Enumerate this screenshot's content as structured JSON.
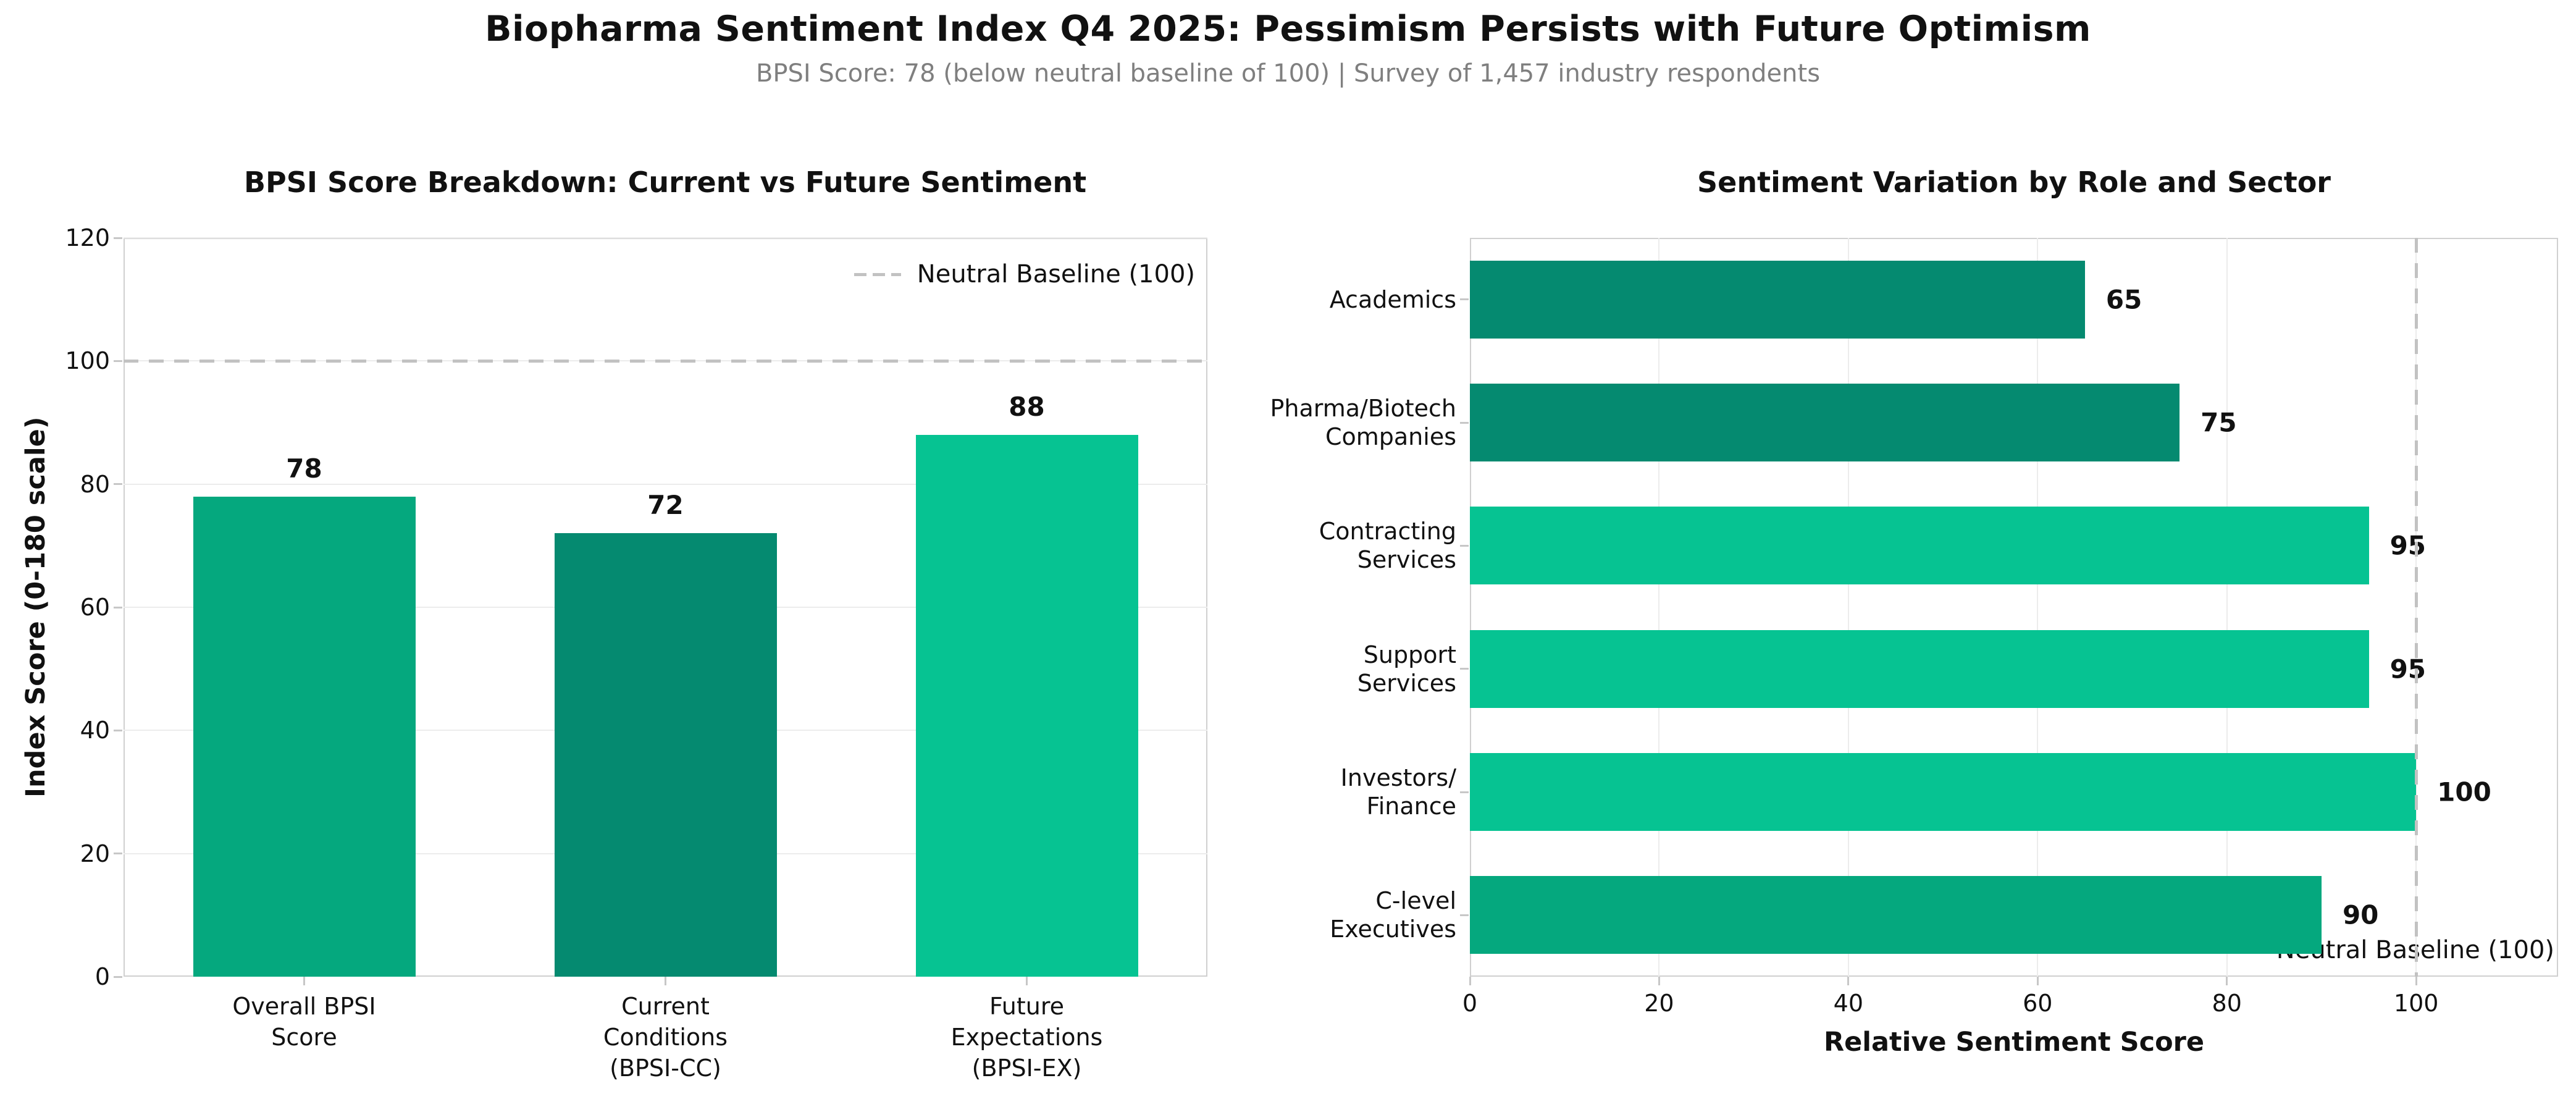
{
  "header": {
    "title": "Biopharma Sentiment Index Q4 2025: Pessimism Persists with Future Optimism",
    "subtitle": "BPSI Score: 78 (below neutral baseline of 100) | Survey of 1,457 industry respondents"
  },
  "colors": {
    "bar_dark": "#058A70",
    "bar_medium": "#05A87E",
    "bar_light": "#06C392",
    "baseline_dash": "#C2C2C2",
    "gridline": "#ECECEC",
    "spine": "#D0D0D0",
    "tick_mark": "#C7C7C7",
    "subtitle_text": "#7F7F7F",
    "text": "#111111"
  },
  "chart_data": [
    {
      "type": "bar",
      "title": "BPSI Score Breakdown: Current vs Future Sentiment",
      "ylabel": "Index Score (0-180 scale)",
      "categories": [
        "Overall BPSI\nScore",
        "Current\nConditions\n(BPSI-CC)",
        "Future\nExpectations\n(BPSI-EX)"
      ],
      "values": [
        78,
        72,
        88
      ],
      "bar_color_roles": [
        "bar_medium",
        "bar_dark",
        "bar_light"
      ],
      "ylim": [
        0,
        120
      ],
      "yticks": [
        0,
        20,
        40,
        60,
        80,
        100,
        120
      ],
      "grid": "horizontal",
      "baseline": {
        "value": 100,
        "label": "Neutral Baseline (100)"
      },
      "legend_position": "upper right"
    },
    {
      "type": "horizontal_bar",
      "title": "Sentiment Variation by Role and Sector",
      "xlabel": "Relative Sentiment Score",
      "categories": [
        "Academics",
        "Pharma/Biotech\nCompanies",
        "Contracting\nServices",
        "Support\nServices",
        "Investors/\nFinance",
        "C-level\nExecutives"
      ],
      "values": [
        65,
        75,
        95,
        95,
        100,
        90
      ],
      "bar_color_roles": [
        "bar_dark",
        "bar_dark",
        "bar_light",
        "bar_light",
        "bar_light",
        "bar_medium"
      ],
      "xlim": [
        0,
        115
      ],
      "xticks": [
        0,
        20,
        40,
        60,
        80,
        100
      ],
      "grid": "vertical",
      "baseline": {
        "value": 100,
        "label": "Neutral Baseline (100)"
      },
      "legend_position": "lower right"
    }
  ]
}
